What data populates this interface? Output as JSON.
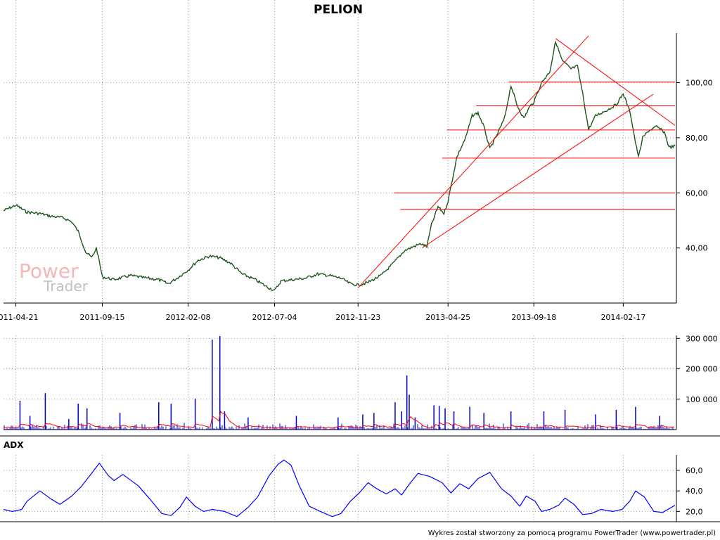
{
  "chart_data": [
    {
      "type": "line",
      "title": "PELION",
      "x_tick_labels": [
        "2011-04-21",
        "2011-09-15",
        "2012-02-08",
        "2012-07-04",
        "2012-11-23",
        "2013-04-25",
        "2013-09-18",
        "2014-02-17"
      ],
      "y_tick_labels": [
        "40,00",
        "60,00",
        "80,00",
        "100,00"
      ],
      "y_ticks": [
        40,
        60,
        80,
        100
      ],
      "ylim": [
        20,
        118
      ],
      "x_range": [
        "2011-03-31",
        "2014-05-16"
      ],
      "grid": true,
      "series": [
        {
          "color": "#000000",
          "points": [
            [
              "2011-03-31",
              53.5
            ],
            [
              "2011-04-21",
              55.5
            ],
            [
              "2011-05-10",
              53.0
            ],
            [
              "2011-06-01",
              52.5
            ],
            [
              "2011-06-20",
              51.5
            ],
            [
              "2011-07-10",
              51.0
            ],
            [
              "2011-07-25",
              49.5
            ],
            [
              "2011-08-05",
              46.0
            ],
            [
              "2011-08-18",
              38.5
            ],
            [
              "2011-08-28",
              36.5
            ],
            [
              "2011-09-05",
              40.0
            ],
            [
              "2011-09-10",
              35.0
            ],
            [
              "2011-09-15",
              29.5
            ],
            [
              "2011-10-05",
              28.5
            ],
            [
              "2011-11-01",
              30.0
            ],
            [
              "2011-12-01",
              29.0
            ],
            [
              "2011-12-20",
              28.5
            ],
            [
              "2012-01-05",
              27.0
            ],
            [
              "2012-01-20",
              29.0
            ],
            [
              "2012-02-08",
              32.0
            ],
            [
              "2012-02-25",
              35.5
            ],
            [
              "2012-03-15",
              37.0
            ],
            [
              "2012-04-01",
              36.5
            ],
            [
              "2012-04-20",
              34.5
            ],
            [
              "2012-05-10",
              30.5
            ],
            [
              "2012-06-01",
              28.5
            ],
            [
              "2012-06-20",
              26.0
            ],
            [
              "2012-07-04",
              24.5
            ],
            [
              "2012-07-15",
              28.0
            ],
            [
              "2012-08-05",
              28.5
            ],
            [
              "2012-08-25",
              29.0
            ],
            [
              "2012-09-15",
              30.5
            ],
            [
              "2012-10-05",
              30.0
            ],
            [
              "2012-10-25",
              29.0
            ],
            [
              "2012-11-10",
              27.0
            ],
            [
              "2012-11-23",
              26.5
            ],
            [
              "2012-12-10",
              27.5
            ],
            [
              "2013-01-01",
              30.0
            ],
            [
              "2013-01-20",
              34.0
            ],
            [
              "2013-02-10",
              39.0
            ],
            [
              "2013-02-25",
              40.5
            ],
            [
              "2013-03-10",
              41.5
            ],
            [
              "2013-03-20",
              40.5
            ],
            [
              "2013-03-28",
              48.5
            ],
            [
              "2013-04-08",
              55.0
            ],
            [
              "2013-04-18",
              52.5
            ],
            [
              "2013-04-25",
              57.0
            ],
            [
              "2013-05-10",
              73.0
            ],
            [
              "2013-05-25",
              80.0
            ],
            [
              "2013-06-05",
              88.0
            ],
            [
              "2013-06-15",
              89.0
            ],
            [
              "2013-06-25",
              84.0
            ],
            [
              "2013-07-05",
              76.0
            ],
            [
              "2013-07-15",
              80.0
            ],
            [
              "2013-07-30",
              87.0
            ],
            [
              "2013-08-10",
              99.0
            ],
            [
              "2013-08-20",
              92.0
            ],
            [
              "2013-09-01",
              87.0
            ],
            [
              "2013-09-10",
              91.0
            ],
            [
              "2013-09-18",
              93.0
            ],
            [
              "2013-10-01",
              100.0
            ],
            [
              "2013-10-15",
              104.0
            ],
            [
              "2013-10-25",
              115.0
            ],
            [
              "2013-11-05",
              108.0
            ],
            [
              "2013-11-20",
              105.0
            ],
            [
              "2013-12-01",
              106.0
            ],
            [
              "2013-12-10",
              96.0
            ],
            [
              "2013-12-20",
              83.0
            ],
            [
              "2014-01-01",
              88.0
            ],
            [
              "2014-01-20",
              90.0
            ],
            [
              "2014-02-05",
              92.0
            ],
            [
              "2014-02-17",
              96.0
            ],
            [
              "2014-03-01",
              89.0
            ],
            [
              "2014-03-10",
              78.0
            ],
            [
              "2014-03-15",
              73.0
            ],
            [
              "2014-03-22",
              80.0
            ],
            [
              "2014-04-01",
              82.5
            ],
            [
              "2014-04-15",
              84.0
            ],
            [
              "2014-04-28",
              82.0
            ],
            [
              "2014-05-06",
              76.5
            ],
            [
              "2014-05-16",
              77.0
            ]
          ]
        }
      ],
      "annotations": {
        "color": "#ff0000",
        "horizontal_lines": [
          {
            "from": "2013-08-06",
            "to": "2014-05-16",
            "y": 100.2
          },
          {
            "from": "2013-06-12",
            "to": "2014-05-16",
            "y": 91.6
          },
          {
            "from": "2013-04-23",
            "to": "2014-05-16",
            "y": 82.8
          },
          {
            "from": "2013-04-15",
            "to": "2014-05-16",
            "y": 72.6
          },
          {
            "from": "2013-01-23",
            "to": "2014-05-16",
            "y": 60.0
          },
          {
            "from": "2013-02-03",
            "to": "2014-05-16",
            "y": 54.0
          }
        ],
        "trend_lines": [
          {
            "from": [
              "2012-11-23",
              25.5
            ],
            "to": [
              "2013-12-20",
              117.0
            ]
          },
          {
            "from": [
              "2013-03-12",
              40.0
            ],
            "to": [
              "2014-04-09",
              95.8
            ]
          },
          {
            "from": [
              "2013-10-25",
              116.0
            ],
            "to": [
              "2014-05-16",
              84.5
            ]
          }
        ]
      },
      "watermark": {
        "line1": "Power",
        "line2": "Trader"
      }
    },
    {
      "type": "bar",
      "y_tick_labels": [
        "100 000",
        "200 000",
        "300 000"
      ],
      "y_ticks": [
        100000,
        200000,
        300000
      ],
      "ylim": [
        0,
        310000
      ],
      "grid": true,
      "bar_color": "#0000cc",
      "avg_color": "#ff0000",
      "spikes": [
        [
          "2011-04-28",
          95000
        ],
        [
          "2011-05-15",
          45000
        ],
        [
          "2011-06-10",
          120000
        ],
        [
          "2011-07-20",
          35000
        ],
        [
          "2011-08-05",
          85000
        ],
        [
          "2011-08-20",
          70000
        ],
        [
          "2011-10-15",
          55000
        ],
        [
          "2011-12-20",
          90000
        ],
        [
          "2012-01-10",
          85000
        ],
        [
          "2012-02-20",
          102000
        ],
        [
          "2012-03-20",
          296000
        ],
        [
          "2012-04-02",
          308000
        ],
        [
          "2012-04-10",
          60000
        ],
        [
          "2012-05-20",
          40000
        ],
        [
          "2012-08-10",
          45000
        ],
        [
          "2012-10-20",
          40000
        ],
        [
          "2012-12-01",
          50000
        ],
        [
          "2012-12-20",
          55000
        ],
        [
          "2013-01-25",
          90000
        ],
        [
          "2013-02-05",
          60000
        ],
        [
          "2013-02-14",
          178000
        ],
        [
          "2013-02-18",
          115000
        ],
        [
          "2013-02-28",
          40000
        ],
        [
          "2013-04-01",
          80000
        ],
        [
          "2013-04-10",
          78000
        ],
        [
          "2013-04-20",
          70000
        ],
        [
          "2013-05-05",
          60000
        ],
        [
          "2013-06-01",
          75000
        ],
        [
          "2013-06-25",
          55000
        ],
        [
          "2013-08-10",
          60000
        ],
        [
          "2013-10-05",
          60000
        ],
        [
          "2013-11-10",
          65000
        ],
        [
          "2014-01-01",
          50000
        ],
        [
          "2014-02-05",
          65000
        ],
        [
          "2014-03-10",
          75000
        ],
        [
          "2014-04-20",
          45000
        ]
      ]
    },
    {
      "type": "line",
      "panel_label": "ADX",
      "y_tick_labels": [
        "20,0",
        "40,0",
        "60,0"
      ],
      "y_ticks": [
        20,
        40,
        60
      ],
      "ylim": [
        10,
        75
      ],
      "grid": true,
      "series": [
        {
          "color": "#0000ff",
          "points": [
            [
              "2011-03-31",
              22
            ],
            [
              "2011-04-15",
              20
            ],
            [
              "2011-05-01",
              22
            ],
            [
              "2011-05-10",
              30
            ],
            [
              "2011-06-01",
              40
            ],
            [
              "2011-06-20",
              32
            ],
            [
              "2011-07-05",
              27
            ],
            [
              "2011-07-25",
              35
            ],
            [
              "2011-08-10",
              44
            ],
            [
              "2011-08-25",
              55
            ],
            [
              "2011-09-10",
              67
            ],
            [
              "2011-09-25",
              55
            ],
            [
              "2011-10-05",
              50
            ],
            [
              "2011-10-20",
              56
            ],
            [
              "2011-11-15",
              45
            ],
            [
              "2011-12-05",
              32
            ],
            [
              "2011-12-25",
              18
            ],
            [
              "2012-01-10",
              16
            ],
            [
              "2012-01-25",
              24
            ],
            [
              "2012-02-05",
              34
            ],
            [
              "2012-02-20",
              25
            ],
            [
              "2012-03-05",
              20
            ],
            [
              "2012-03-20",
              22
            ],
            [
              "2012-04-10",
              20
            ],
            [
              "2012-05-01",
              15
            ],
            [
              "2012-05-20",
              24
            ],
            [
              "2012-06-05",
              34
            ],
            [
              "2012-06-25",
              55
            ],
            [
              "2012-07-10",
              66
            ],
            [
              "2012-07-20",
              70
            ],
            [
              "2012-08-01",
              65
            ],
            [
              "2012-08-15",
              45
            ],
            [
              "2012-09-01",
              25
            ],
            [
              "2012-09-20",
              20
            ],
            [
              "2012-10-10",
              15
            ],
            [
              "2012-10-25",
              18
            ],
            [
              "2012-11-10",
              30
            ],
            [
              "2012-11-25",
              38
            ],
            [
              "2012-12-10",
              48
            ],
            [
              "2012-12-25",
              42
            ],
            [
              "2013-01-10",
              37
            ],
            [
              "2013-01-25",
              42
            ],
            [
              "2013-02-05",
              36
            ],
            [
              "2013-02-20",
              48
            ],
            [
              "2013-03-05",
              57
            ],
            [
              "2013-03-25",
              54
            ],
            [
              "2013-04-15",
              48
            ],
            [
              "2013-04-30",
              38
            ],
            [
              "2013-05-15",
              47
            ],
            [
              "2013-05-30",
              42
            ],
            [
              "2013-06-15",
              52
            ],
            [
              "2013-07-05",
              58
            ],
            [
              "2013-07-25",
              42
            ],
            [
              "2013-08-10",
              35
            ],
            [
              "2013-08-25",
              25
            ],
            [
              "2013-09-05",
              35
            ],
            [
              "2013-09-20",
              30
            ],
            [
              "2013-10-01",
              20
            ],
            [
              "2013-10-15",
              22
            ],
            [
              "2013-10-30",
              26
            ],
            [
              "2013-11-10",
              33
            ],
            [
              "2013-11-25",
              27
            ],
            [
              "2013-12-10",
              17
            ],
            [
              "2013-12-25",
              18
            ],
            [
              "2014-01-10",
              22
            ],
            [
              "2014-01-30",
              20
            ],
            [
              "2014-02-15",
              22
            ],
            [
              "2014-02-28",
              30
            ],
            [
              "2014-03-10",
              40
            ],
            [
              "2014-03-25",
              34
            ],
            [
              "2014-04-10",
              20
            ],
            [
              "2014-04-25",
              19
            ],
            [
              "2014-05-16",
              26
            ]
          ]
        }
      ]
    }
  ],
  "credit": "Wykres został stworzony za pomocą programu PowerTrader (www.powertrader.pl)"
}
